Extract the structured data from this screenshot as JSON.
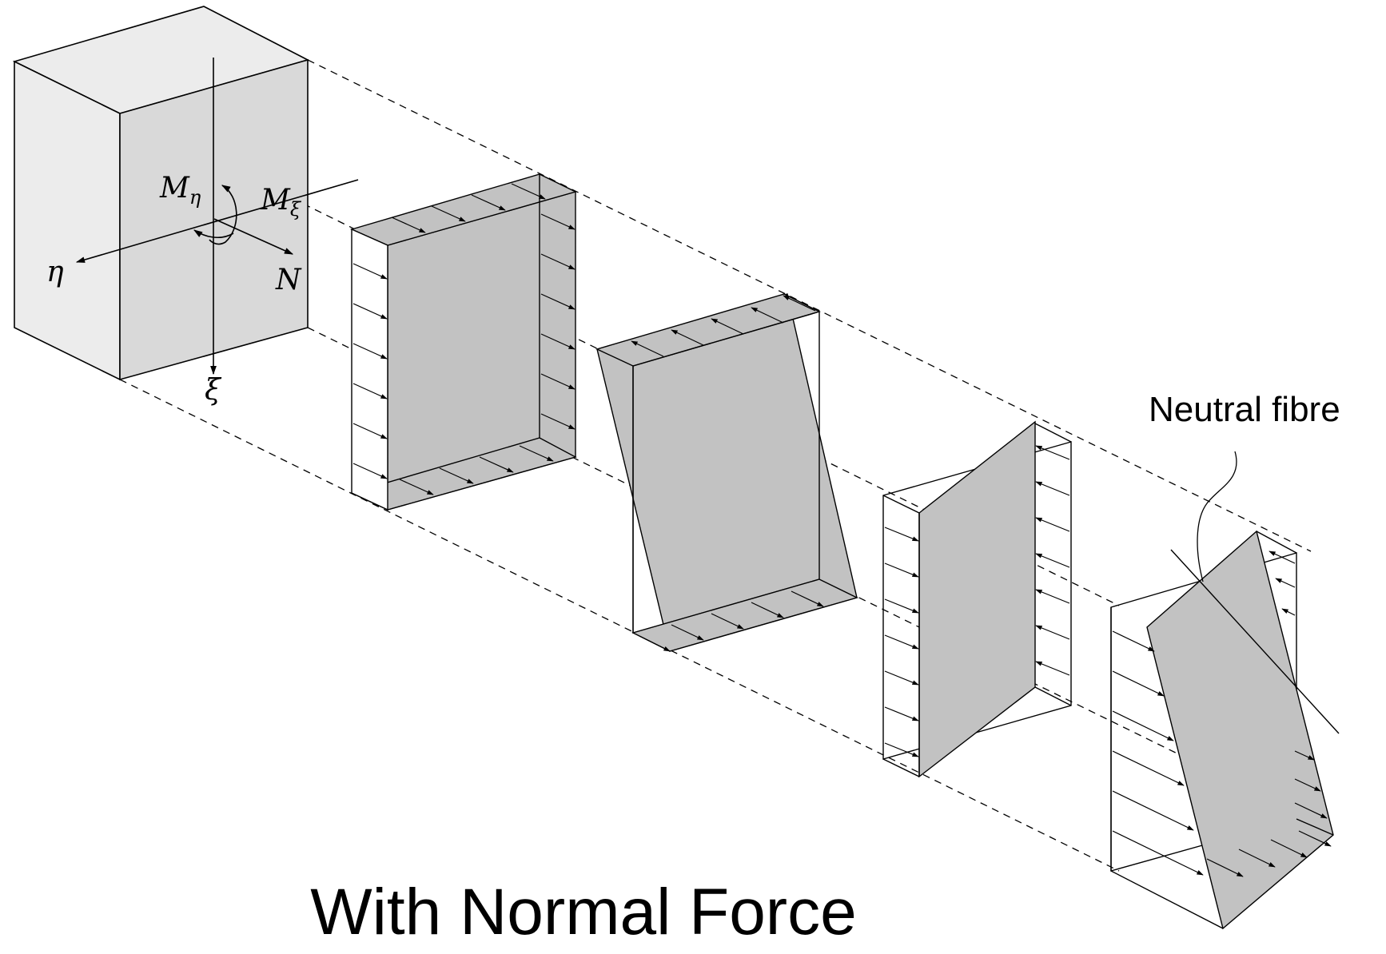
{
  "labels": {
    "m_eta": {
      "base": "M",
      "sub": "η"
    },
    "m_xi": {
      "base": "M",
      "sub": "ξ"
    },
    "eta": "η",
    "n": "N",
    "xi": "ξ",
    "neutral_fibre": "Neutral fibre"
  },
  "caption": "With Normal Force",
  "colors": {
    "face_light": "#ececec",
    "face_front": "#d9d9d9",
    "shade": "#c2c2c2",
    "stroke": "#000000"
  }
}
